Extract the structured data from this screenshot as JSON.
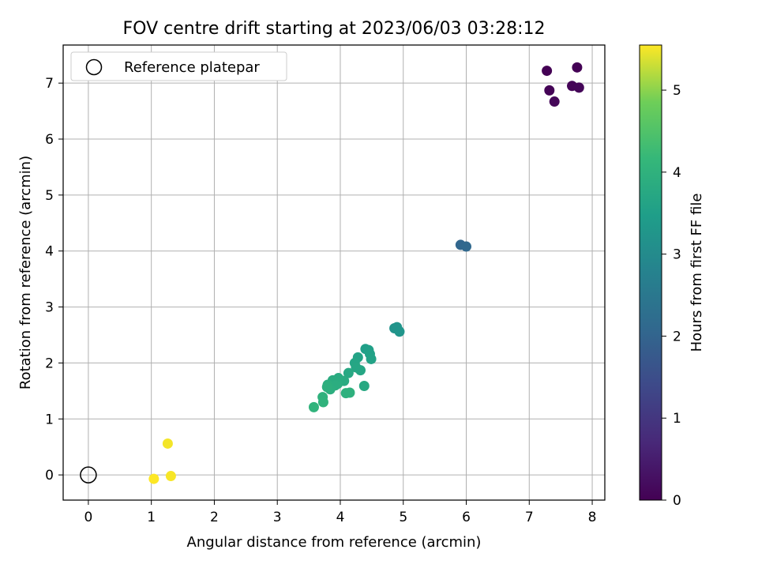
{
  "chart_data": {
    "type": "scatter",
    "title": "FOV centre drift starting at 2023/06/03 03:28:12",
    "xlabel": "Angular distance from reference (arcmin)",
    "ylabel": "Rotation from reference (arcmin)",
    "xlim": [
      -0.4,
      8.2
    ],
    "ylim": [
      -0.45,
      7.68
    ],
    "x_ticks": [
      0,
      1,
      2,
      3,
      4,
      5,
      6,
      7,
      8
    ],
    "y_ticks": [
      0,
      1,
      2,
      3,
      4,
      5,
      6,
      7
    ],
    "grid": true,
    "legend": {
      "placement": "upper-left",
      "entries": [
        "Reference platepar"
      ]
    },
    "reference_point": {
      "name": "Reference platepar",
      "x": 0,
      "y": 0,
      "marker": "open-circle"
    },
    "colorbar": {
      "label": "Hours from first FF file",
      "range": [
        0,
        5.55
      ],
      "ticks": [
        0,
        1,
        2,
        3,
        4,
        5
      ],
      "colormap": "viridis"
    },
    "points": [
      {
        "x": 7.28,
        "y": 7.22,
        "hours": 0.0
      },
      {
        "x": 7.76,
        "y": 7.28,
        "hours": 0.02
      },
      {
        "x": 7.32,
        "y": 6.87,
        "hours": 0.04
      },
      {
        "x": 7.68,
        "y": 6.95,
        "hours": 0.06
      },
      {
        "x": 7.79,
        "y": 6.92,
        "hours": 0.08
      },
      {
        "x": 7.4,
        "y": 6.67,
        "hours": 0.1
      },
      {
        "x": 5.91,
        "y": 4.11,
        "hours": 2.05
      },
      {
        "x": 6.0,
        "y": 4.08,
        "hours": 2.1
      },
      {
        "x": 4.86,
        "y": 2.62,
        "hours": 3.2
      },
      {
        "x": 4.9,
        "y": 2.64,
        "hours": 3.22
      },
      {
        "x": 4.94,
        "y": 2.56,
        "hours": 3.25
      },
      {
        "x": 4.4,
        "y": 2.25,
        "hours": 3.5
      },
      {
        "x": 4.45,
        "y": 2.23,
        "hours": 3.52
      },
      {
        "x": 4.47,
        "y": 2.16,
        "hours": 3.55
      },
      {
        "x": 4.49,
        "y": 2.07,
        "hours": 3.58
      },
      {
        "x": 4.28,
        "y": 2.1,
        "hours": 3.62
      },
      {
        "x": 4.23,
        "y": 2.0,
        "hours": 3.65
      },
      {
        "x": 4.25,
        "y": 1.92,
        "hours": 3.68
      },
      {
        "x": 4.32,
        "y": 1.87,
        "hours": 3.7
      },
      {
        "x": 4.13,
        "y": 1.82,
        "hours": 3.74
      },
      {
        "x": 4.38,
        "y": 1.59,
        "hours": 3.76
      },
      {
        "x": 4.06,
        "y": 1.68,
        "hours": 3.8
      },
      {
        "x": 3.97,
        "y": 1.73,
        "hours": 3.82
      },
      {
        "x": 3.88,
        "y": 1.69,
        "hours": 3.84
      },
      {
        "x": 3.96,
        "y": 1.63,
        "hours": 3.86
      },
      {
        "x": 3.92,
        "y": 1.6,
        "hours": 3.88
      },
      {
        "x": 3.8,
        "y": 1.61,
        "hours": 3.9
      },
      {
        "x": 3.84,
        "y": 1.53,
        "hours": 3.92
      },
      {
        "x": 3.79,
        "y": 1.57,
        "hours": 3.94
      },
      {
        "x": 4.09,
        "y": 1.46,
        "hours": 3.96
      },
      {
        "x": 4.15,
        "y": 1.47,
        "hours": 3.98
      },
      {
        "x": 3.72,
        "y": 1.39,
        "hours": 4.0
      },
      {
        "x": 3.73,
        "y": 1.3,
        "hours": 4.02
      },
      {
        "x": 3.58,
        "y": 1.21,
        "hours": 4.05
      },
      {
        "x": 1.26,
        "y": 0.56,
        "hours": 5.5
      },
      {
        "x": 1.31,
        "y": -0.02,
        "hours": 5.52
      },
      {
        "x": 1.04,
        "y": -0.07,
        "hours": 5.55
      }
    ]
  }
}
